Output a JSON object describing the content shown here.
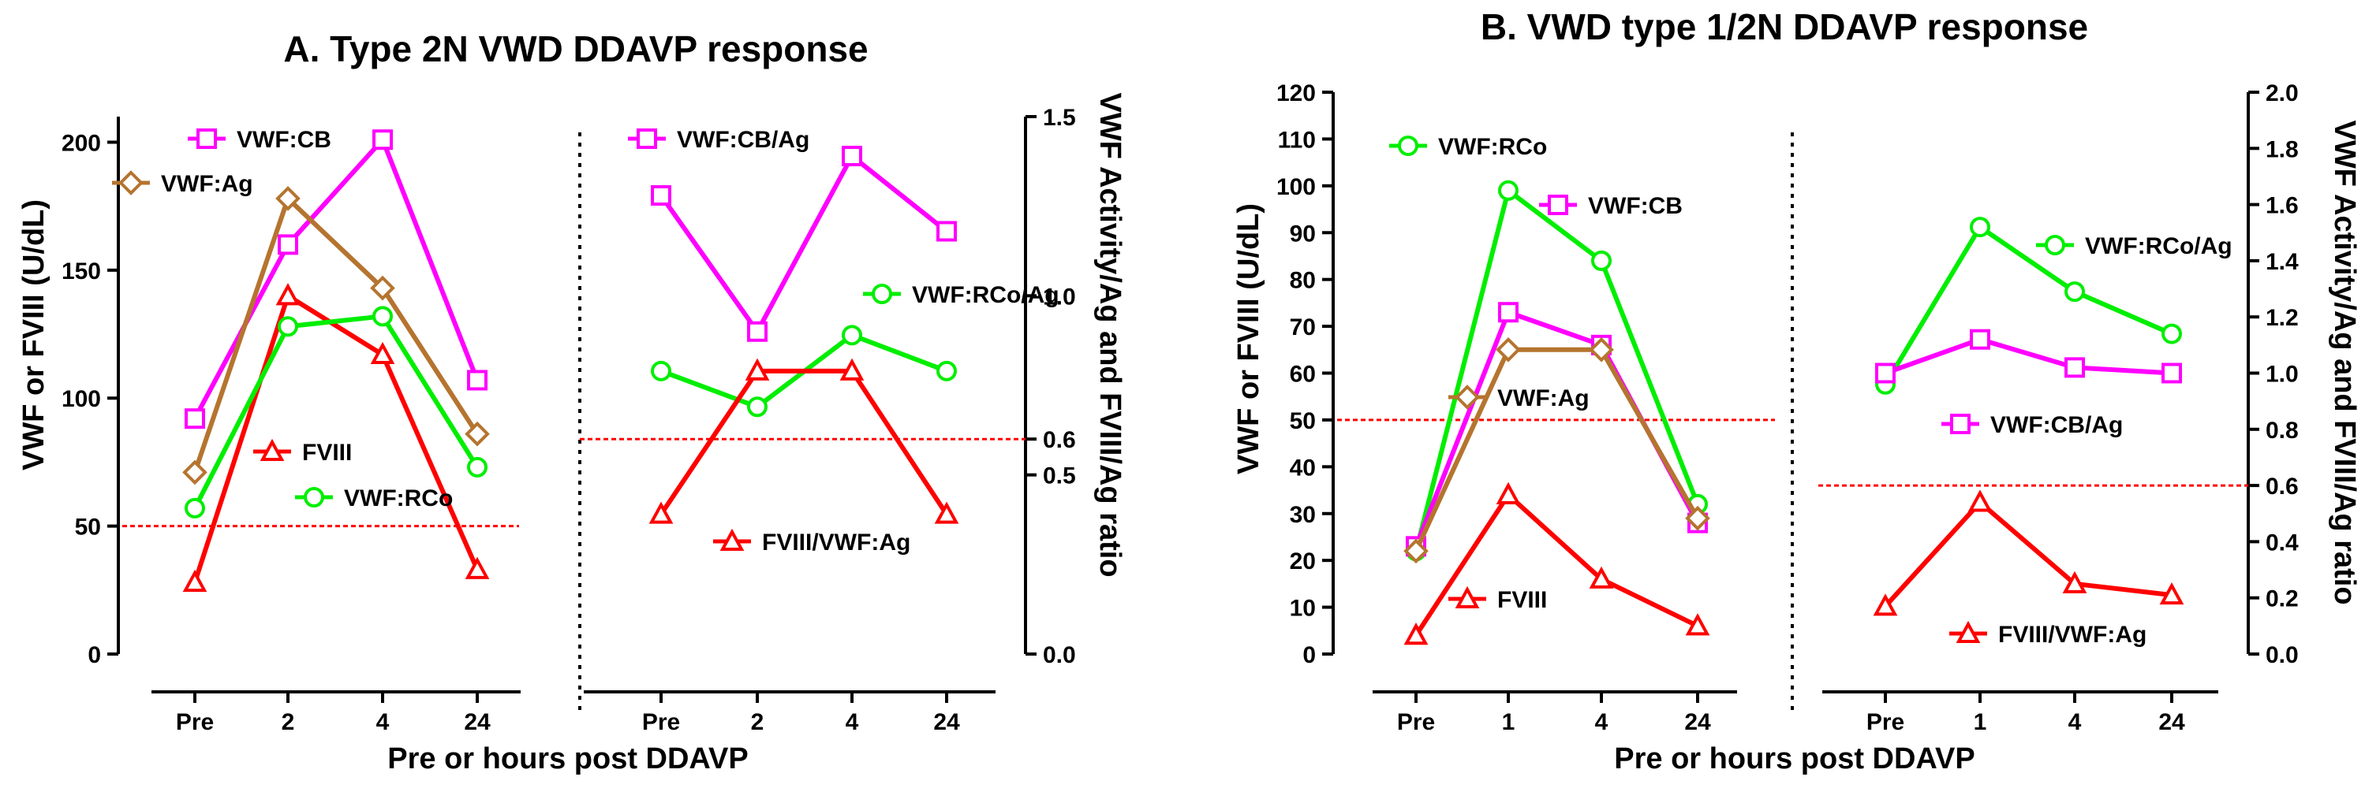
{
  "chart_data": [
    {
      "type": "line",
      "title": "A. Type 2N VWD DDAVP response",
      "xlabel": "Pre or hours post DDAVP",
      "ylabel_left": "VWF or FVIII (U/dL)",
      "ylabel_right": "VWF Activity/Ag and FVIII/Ag ratio",
      "categories": [
        "Pre",
        "2",
        "4",
        "24"
      ],
      "left": {
        "ylim": [
          0,
          210
        ],
        "yticks": [
          "0",
          "50",
          "100",
          "150",
          "200"
        ],
        "reference_line": 50,
        "series": [
          {
            "name": "VWF:CB",
            "color": "#ff00ff",
            "marker": "square",
            "values": [
              92,
              160,
              201,
              107
            ]
          },
          {
            "name": "VWF:Ag",
            "color": "#b5742f",
            "marker": "diamond",
            "values": [
              71,
              178,
              143,
              86
            ]
          },
          {
            "name": "FVIII",
            "color": "#ff0000",
            "marker": "triangle",
            "values": [
              28,
              140,
              117,
              33
            ]
          },
          {
            "name": "VWF:RCo",
            "color": "#00ee00",
            "marker": "circle",
            "values": [
              57,
              128,
              132,
              73
            ]
          }
        ]
      },
      "right": {
        "ylim": [
          0,
          1.5
        ],
        "yticks": [
          "0.0",
          "0.5",
          "0.6",
          "1.0",
          "1.5"
        ],
        "reference_line": 0.6,
        "series": [
          {
            "name": "VWF:CB/Ag",
            "color": "#ff00ff",
            "marker": "square",
            "values": [
              1.28,
              0.9,
              1.39,
              1.18
            ]
          },
          {
            "name": "VWF:RCo/Ag",
            "color": "#00ee00",
            "marker": "circle",
            "values": [
              0.79,
              0.69,
              0.89,
              0.79
            ]
          },
          {
            "name": "FVIII/VWF:Ag",
            "color": "#ff0000",
            "marker": "triangle",
            "values": [
              0.39,
              0.79,
              0.79,
              0.39
            ]
          }
        ]
      }
    },
    {
      "type": "line",
      "title": "B. VWD type 1/2N DDAVP response",
      "xlabel": "Pre or hours post DDAVP",
      "ylabel_left": "VWF or FVIII (U/dL)",
      "ylabel_right": "VWF Activity/Ag and FVIII/Ag ratio",
      "categories": [
        "Pre",
        "1",
        "4",
        "24"
      ],
      "left": {
        "ylim": [
          0,
          120
        ],
        "yticks": [
          "0",
          "10",
          "20",
          "30",
          "40",
          "50",
          "60",
          "70",
          "80",
          "90",
          "100",
          "110",
          "120"
        ],
        "reference_line": 50,
        "series": [
          {
            "name": "VWF:RCo",
            "color": "#00ee00",
            "marker": "circle",
            "values": [
              22,
              99,
              84,
              32
            ]
          },
          {
            "name": "VWF:CB",
            "color": "#ff00ff",
            "marker": "square",
            "values": [
              23,
              73,
              66,
              28
            ]
          },
          {
            "name": "VWF:Ag",
            "color": "#b5742f",
            "marker": "diamond",
            "values": [
              22,
              65,
              65,
              29
            ]
          },
          {
            "name": "FVIII",
            "color": "#ff0000",
            "marker": "triangle",
            "values": [
              4,
              34,
              16,
              6
            ]
          }
        ]
      },
      "right": {
        "ylim": [
          0,
          2.0
        ],
        "yticks": [
          "0.0",
          "0.2",
          "0.4",
          "0.6",
          "0.8",
          "1.0",
          "1.2",
          "1.4",
          "1.6",
          "1.8",
          "2.0"
        ],
        "reference_line": 0.6,
        "series": [
          {
            "name": "VWF:RCo/Ag",
            "color": "#00ee00",
            "marker": "circle",
            "values": [
              0.96,
              1.52,
              1.29,
              1.14
            ]
          },
          {
            "name": "VWF:CB/Ag",
            "color": "#ff00ff",
            "marker": "square",
            "values": [
              1.0,
              1.12,
              1.02,
              1.0
            ]
          },
          {
            "name": "FVIII/VWF:Ag",
            "color": "#ff0000",
            "marker": "triangle",
            "values": [
              0.17,
              0.54,
              0.25,
              0.21
            ]
          }
        ]
      }
    }
  ]
}
